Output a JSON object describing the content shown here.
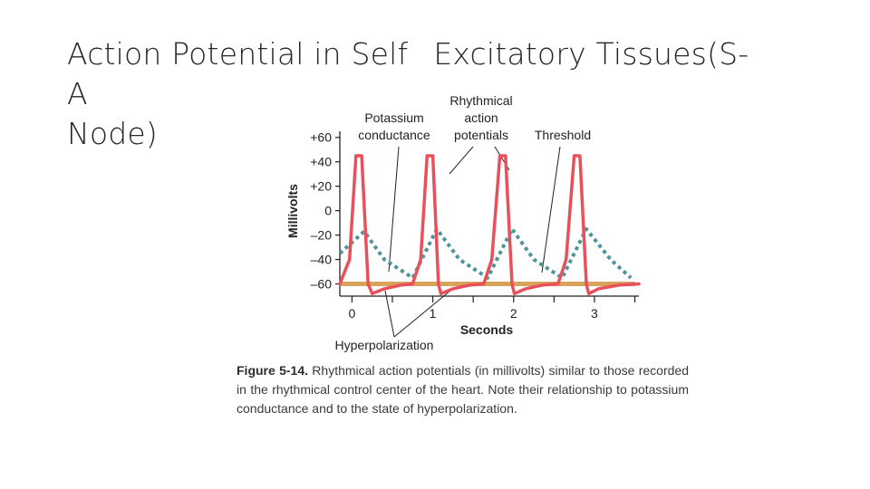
{
  "slide": {
    "title_line1_a": "Action Potential in Self",
    "title_line1_b": "Excitatory Tissues(S-A",
    "title_line2": "Node)"
  },
  "chart_data": {
    "type": "line",
    "ylabel": "Millivolts",
    "xlabel": "Seconds",
    "ylim": [
      -70,
      65
    ],
    "xlim": [
      -0.15,
      3.55
    ],
    "y_ticks": [
      60,
      40,
      20,
      0,
      -20,
      -40,
      -60
    ],
    "y_tick_labels": [
      "+60",
      "+40",
      "+20",
      "0",
      "–20",
      "–40",
      "–60"
    ],
    "x_ticks": [
      0,
      1,
      2,
      3
    ],
    "x_tick_labels": [
      "0",
      "1",
      "2",
      "3"
    ],
    "series": [
      {
        "color": "#e8505b",
        "style": "solid",
        "x": [
          -0.15,
          -0.03,
          0.05,
          0.12,
          0.2,
          0.25,
          0.4,
          0.6,
          0.75,
          0.85,
          0.93,
          1.0,
          1.07,
          1.1,
          1.25,
          1.45,
          1.63,
          1.73,
          1.83,
          1.9,
          1.98,
          2.01,
          2.15,
          2.35,
          2.55,
          2.65,
          2.75,
          2.82,
          2.9,
          2.93,
          3.05,
          3.3,
          3.55
        ],
        "y": [
          -60,
          -40,
          45,
          45,
          -60,
          -68,
          -64,
          -61,
          -60,
          -40,
          45,
          45,
          -60,
          -68,
          -64,
          -61,
          -60,
          -40,
          45,
          45,
          -60,
          -68,
          -64,
          -61,
          -60,
          -40,
          45,
          45,
          -60,
          -68,
          -64,
          -61,
          -60
        ]
      },
      {
        "color": "#4e9499",
        "style": "dotted",
        "x": [
          -0.15,
          0.15,
          0.4,
          0.75,
          1.05,
          1.33,
          1.68,
          1.98,
          2.25,
          2.6,
          2.9,
          3.2,
          3.45
        ],
        "y": [
          -35,
          -17,
          -40,
          -55,
          -15,
          -40,
          -55,
          -15,
          -40,
          -55,
          -15,
          -40,
          -55
        ]
      },
      {
        "color": "#d8a45a",
        "style": "solid",
        "x": [
          -0.15,
          3.5
        ],
        "y": [
          -60,
          -60
        ]
      }
    ],
    "annotations": [
      {
        "lines": [
          "Potassium",
          "conductance"
        ]
      },
      {
        "lines": [
          "Rhythmical",
          "action",
          "potentials"
        ]
      },
      {
        "lines": [
          "Threshold"
        ]
      },
      {
        "lines": [
          "Hyperpolarization"
        ]
      }
    ]
  },
  "caption": {
    "figure_label": "Figure 5-14.",
    "text": " Rhythmical action potentials (in millivolts) similar to those recorded in the rhythmical control center of the heart. Note their relationship to potassium conductance and to the state of hyperpolarization."
  }
}
